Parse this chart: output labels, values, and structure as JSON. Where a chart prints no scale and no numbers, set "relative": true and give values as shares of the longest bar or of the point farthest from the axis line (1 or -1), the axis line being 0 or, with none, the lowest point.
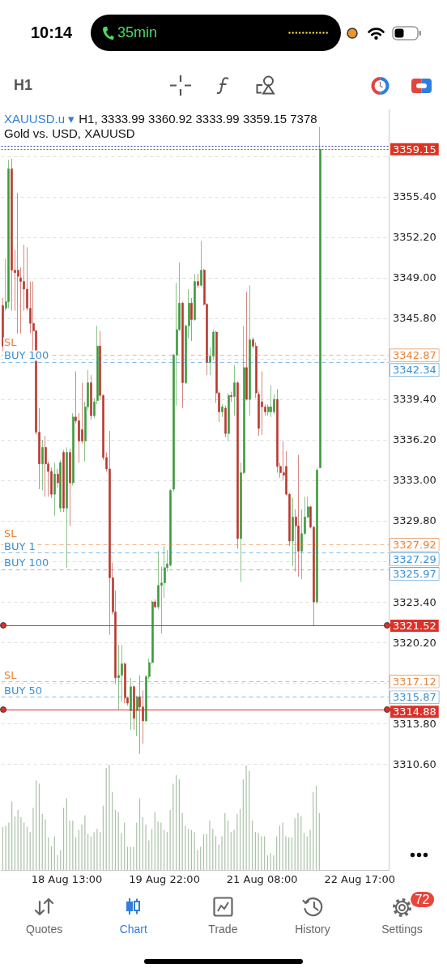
{
  "chart_data": [
    {
      "type": "candlestick",
      "title": "XAUUSD.u ▾",
      "subtitle": "Gold vs. USD, XAUUSD",
      "annotations": [
        "H1, 3333.99 3360.92 3333.99 3359.15 7378",
        "10:14",
        "35min",
        "H1",
        "Quotes",
        "Chart",
        "Trade",
        "History",
        "Settings",
        "72",
        {
          "text": "SL",
          "y": 3342.87
        },
        {
          "text": "BUY 100",
          "y": 3342.34
        },
        {
          "text": "SL",
          "y": 3327.92
        },
        {
          "text": "BUY 1",
          "y": 3327.29
        },
        {
          "text": "BUY 100",
          "y": 3325.97
        },
        {
          "text": "SL",
          "y": 3317.12
        },
        {
          "text": "BUY 50",
          "y": 3315.87
        }
      ],
      "categories": [
        null,
        null,
        null,
        null,
        null,
        null,
        null,
        null,
        null,
        null,
        null,
        null,
        null,
        null,
        null,
        null,
        null,
        null,
        null,
        null,
        null,
        "18 Aug 13:00",
        null,
        null,
        null,
        null,
        null,
        null,
        null,
        null,
        null,
        null,
        null,
        null,
        null,
        null,
        null,
        null,
        null,
        null,
        null,
        null,
        null,
        null,
        null,
        null,
        null,
        null,
        null,
        null,
        null,
        null,
        null,
        "19 Aug 22:00",
        null,
        null,
        null,
        null,
        null,
        null,
        null,
        null,
        null,
        null,
        null,
        null,
        null,
        null,
        null,
        null,
        null,
        null,
        null,
        null,
        null,
        null,
        null,
        null,
        null,
        null,
        null,
        null,
        null,
        null,
        null,
        "21 Aug 08:00",
        null,
        null,
        null,
        null,
        null,
        null,
        null,
        null,
        null,
        null,
        null,
        null,
        null,
        null,
        null,
        null,
        null,
        null,
        null,
        null,
        null,
        null,
        null,
        null,
        null,
        null,
        null,
        null,
        null,
        null,
        null,
        "22 Aug 17:00",
        null,
        null,
        null,
        null,
        null,
        null,
        null,
        null,
        null
      ],
      "ohlc": [
        [
          3346.8,
          3347.4,
          3343.2,
          3343.6
        ],
        [
          3346.6,
          3350.5,
          3346.4,
          3347.1
        ],
        [
          3347.1,
          3358.3,
          3346.6,
          3357.6
        ],
        [
          3357.6,
          3358.4,
          3346.4,
          3349.6
        ],
        [
          3349.6,
          3351.2,
          3346.4,
          3349.4
        ],
        [
          3349.6,
          3355.7,
          3344.6,
          3349.1
        ],
        [
          3349.0,
          3349.8,
          3344.6,
          3348.7
        ],
        [
          3348.7,
          3351.6,
          3346.4,
          3348.1
        ],
        [
          3348.1,
          3351.4,
          3346.4,
          3346.6
        ],
        [
          3346.6,
          3348.7,
          3344.6,
          3345.4
        ],
        [
          3345.4,
          3348.7,
          3343.2,
          3344.8
        ],
        [
          3344.8,
          3344.9,
          3336.6,
          3336.8
        ],
        [
          3336.8,
          3338.7,
          3332.3,
          3334.3
        ],
        [
          3334.3,
          3336.2,
          3332.2,
          3335.6
        ],
        [
          3335.6,
          3336.5,
          3331.7,
          3334.3
        ],
        [
          3334.3,
          3334.5,
          3331.7,
          3333.7
        ],
        [
          3333.7,
          3334.0,
          3331.6,
          3331.9
        ],
        [
          3331.9,
          3334.4,
          3330.2,
          3333.5
        ],
        [
          3333.5,
          3333.9,
          3332.4,
          3332.8
        ],
        [
          3330.8,
          3334.6,
          3330.5,
          3334.4
        ],
        [
          3335.2,
          3335.4,
          3330.5,
          3330.8
        ],
        [
          3330.8,
          3335.6,
          3326.1,
          3335.2
        ],
        [
          3335.2,
          3335.5,
          3329.4,
          3332.8
        ],
        [
          3332.8,
          3338.3,
          3332.6,
          3338.0
        ],
        [
          3338.0,
          3341.6,
          3337.5,
          3337.7
        ],
        [
          3337.7,
          3338.3,
          3334.4,
          3336.1
        ],
        [
          3337.0,
          3340.7,
          3335.9,
          3336.1
        ],
        [
          3336.1,
          3339.2,
          3334.5,
          3338.8
        ],
        [
          3338.8,
          3341.7,
          3338.5,
          3340.7
        ],
        [
          3340.7,
          3341.3,
          3337.8,
          3338.1
        ],
        [
          3338.1,
          3339.5,
          3337.9,
          3339.2
        ],
        [
          3339.3,
          3345.2,
          3339.0,
          3343.6
        ],
        [
          3343.6,
          3344.8,
          3339.4,
          3339.7
        ],
        [
          3339.7,
          3339.8,
          3334.6,
          3334.8
        ],
        [
          3334.8,
          3335.2,
          3333.7,
          3333.9
        ],
        [
          3333.9,
          3336.9,
          3320.8,
          3325.3
        ],
        [
          3325.3,
          3326.5,
          3322.4,
          3322.6
        ],
        [
          3322.6,
          3324.3,
          3316.9,
          3317.4
        ],
        [
          3317.4,
          3320.0,
          3314.9,
          3317.6
        ],
        [
          3317.6,
          3320.0,
          3315.5,
          3318.5
        ],
        [
          3318.5,
          3318.6,
          3315.4,
          3315.8
        ],
        [
          3315.8,
          3315.9,
          3315.2,
          3315.4
        ],
        [
          3314.8,
          3317.4,
          3313.3,
          3316.7
        ],
        [
          3316.7,
          3316.8,
          3313.3,
          3314.2
        ],
        [
          3314.8,
          3316.0,
          3312.8,
          3315.9
        ],
        [
          3315.9,
          3317.6,
          3311.4,
          3315.1
        ],
        [
          3315.1,
          3316.4,
          3312.2,
          3314.0
        ],
        [
          3314.0,
          3317.6,
          3313.9,
          3317.5
        ],
        [
          3317.5,
          3318.9,
          3317.3,
          3318.6
        ],
        [
          3318.6,
          3323.5,
          3318.5,
          3323.4
        ],
        [
          3323.4,
          3323.6,
          3322.9,
          3323.0
        ],
        [
          3323.0,
          3327.4,
          3322.8,
          3324.7
        ],
        [
          3324.7,
          3326.2,
          3320.9,
          3324.9
        ],
        [
          3324.9,
          3327.8,
          3323.7,
          3326.1
        ],
        [
          3326.1,
          3327.5,
          3325.8,
          3326.4
        ],
        [
          3326.3,
          3332.3,
          3326.2,
          3332.2
        ],
        [
          3332.3,
          3343.0,
          3332.1,
          3342.9
        ],
        [
          3342.9,
          3348.6,
          3338.9,
          3344.9
        ],
        [
          3344.9,
          3350.2,
          3344.8,
          3347.0
        ],
        [
          3347.0,
          3347.1,
          3338.7,
          3340.7
        ],
        [
          3340.7,
          3345.3,
          3340.6,
          3345.2
        ],
        [
          3345.2,
          3348.1,
          3344.2,
          3347.0
        ],
        [
          3347.0,
          3347.4,
          3344.0,
          3345.7
        ],
        [
          3345.7,
          3349.3,
          3345.6,
          3348.7
        ],
        [
          3348.7,
          3349.3,
          3348.2,
          3348.4
        ],
        [
          3348.4,
          3351.9,
          3348.3,
          3349.6
        ],
        [
          3349.6,
          3349.7,
          3346.8,
          3346.9
        ],
        [
          3346.9,
          3347.0,
          3341.3,
          3342.3
        ],
        [
          3342.3,
          3343.5,
          3341.3,
          3342.8
        ],
        [
          3342.8,
          3344.9,
          3342.5,
          3344.7
        ],
        [
          3344.7,
          3344.8,
          3339.1,
          3339.9
        ],
        [
          3339.9,
          3340.0,
          3337.6,
          3338.4
        ],
        [
          3338.4,
          3339.0,
          3338.0,
          3338.8
        ],
        [
          3338.7,
          3338.9,
          3336.4,
          3336.7
        ],
        [
          3336.7,
          3339.9,
          3336.1,
          3339.7
        ],
        [
          3339.7,
          3340.0,
          3339.2,
          3339.6
        ],
        [
          3339.6,
          3342.1,
          3338.1,
          3340.7
        ],
        [
          3340.7,
          3340.8,
          3327.6,
          3328.4
        ],
        [
          3328.4,
          3334.4,
          3325.0,
          3333.6
        ],
        [
          3333.6,
          3345.2,
          3333.5,
          3341.9
        ],
        [
          3341.9,
          3347.9,
          3339.3,
          3339.4
        ],
        [
          3339.4,
          3348.4,
          3338.1,
          3344.1
        ],
        [
          3344.1,
          3344.3,
          3343.4,
          3343.6
        ],
        [
          3343.6,
          3343.9,
          3339.5,
          3339.9
        ],
        [
          3339.8,
          3340.0,
          3336.5,
          3337.1
        ],
        [
          3339.2,
          3341.6,
          3336.6,
          3338.8
        ],
        [
          3338.8,
          3339.0,
          3338.1,
          3338.4
        ],
        [
          3338.4,
          3339.0,
          3338.1,
          3338.8
        ],
        [
          3338.4,
          3340.5,
          3338.0,
          3338.8
        ],
        [
          3338.4,
          3339.8,
          3338.2,
          3339.4
        ],
        [
          3339.4,
          3340.2,
          3333.6,
          3334.1
        ],
        [
          3334.1,
          3334.4,
          3333.2,
          3333.6
        ],
        [
          3333.6,
          3336.1,
          3333.0,
          3333.4
        ],
        [
          3334.1,
          3335.3,
          3331.8,
          3331.9
        ],
        [
          3331.9,
          3332.0,
          3327.8,
          3328.2
        ],
        [
          3328.2,
          3331.6,
          3326.2,
          3330.1
        ],
        [
          3330.1,
          3330.7,
          3325.8,
          3329.4
        ],
        [
          3329.4,
          3335.0,
          3325.4,
          3327.4
        ],
        [
          3327.4,
          3330.7,
          3325.2,
          3328.8
        ],
        [
          3328.8,
          3331.7,
          3328.7,
          3330.1
        ],
        [
          3330.1,
          3331.7,
          3330.0,
          3330.9
        ],
        [
          3330.9,
          3331.0,
          3329.2,
          3329.3
        ],
        [
          3329.3,
          3329.4,
          3321.5,
          3323.4
        ],
        [
          3323.4,
          3334.0,
          3323.2,
          3333.8
        ],
        [
          3333.99,
          3360.92,
          3333.99,
          3359.15
        ],
        null,
        null,
        null,
        null,
        null,
        null,
        null,
        null,
        null,
        null,
        null,
        null,
        null,
        null,
        null,
        null,
        null,
        null,
        null,
        null,
        null,
        null
      ],
      "colors": [
        "#b8382e",
        "#3c9a3c",
        "#3c9a3c",
        "#b8382e",
        "#b8382e",
        "#b8382e",
        "#b8382e",
        "#b8382e",
        "#b8382e",
        "#b8382e",
        "#b8382e",
        "#b8382e",
        "#b8382e",
        "#3c9a3c",
        "#b8382e",
        "#b8382e",
        "#b8382e",
        "#3c9a3c",
        "#b8382e",
        "#3c9a3c",
        "#b8382e",
        "#3c9a3c",
        "#b8382e",
        "#3c9a3c",
        "#b8382e",
        "#b8382e",
        "#b8382e",
        "#3c9a3c",
        "#3c9a3c",
        "#b8382e",
        "#3c9a3c",
        "#3c9a3c",
        "#b8382e",
        "#b8382e",
        "#b8382e",
        "#b8382e",
        "#b8382e",
        "#b8382e",
        "#3c9a3c",
        "#3c9a3c",
        "#b8382e",
        "#b8382e",
        "#3c9a3c",
        "#b8382e",
        "#3c9a3c",
        "#b8382e",
        "#b8382e",
        "#3c9a3c",
        "#3c9a3c",
        "#3c9a3c",
        "#b8382e",
        "#3c9a3c",
        "#3c9a3c",
        "#3c9a3c",
        "#3c9a3c",
        "#3c9a3c",
        "#3c9a3c",
        "#3c9a3c",
        "#3c9a3c",
        "#b8382e",
        "#3c9a3c",
        "#3c9a3c",
        "#b8382e",
        "#3c9a3c",
        "#b8382e",
        "#3c9a3c",
        "#b8382e",
        "#b8382e",
        "#3c9a3c",
        "#3c9a3c",
        "#b8382e",
        "#b8382e",
        "#3c9a3c",
        "#b8382e",
        "#3c9a3c",
        "#b8382e",
        "#3c9a3c",
        "#b8382e",
        "#3c9a3c",
        "#3c9a3c",
        "#b8382e",
        "#3c9a3c",
        "#b8382e",
        "#b8382e",
        "#b8382e",
        "#b8382e",
        "#b8382e",
        "#3c9a3c",
        "#3c9a3c",
        "#3c9a3c",
        "#b8382e",
        "#b8382e",
        "#b8382e",
        "#b8382e",
        "#b8382e",
        "#3c9a3c",
        "#b8382e",
        "#b8382e",
        "#3c9a3c",
        "#3c9a3c",
        "#3c9a3c",
        "#b8382e",
        "#b8382e",
        "#3c9a3c",
        "#3c9a3c",
        null,
        null,
        null,
        null,
        null,
        null,
        null,
        null,
        null,
        null,
        null,
        null,
        null,
        null,
        null,
        null,
        null,
        null,
        null,
        null,
        null,
        null
      ],
      "ylim": [
        3302.2,
        3362.3
      ],
      "yticks": [
        {
          "value": 3310.6,
          "label": "3310.60"
        },
        {
          "value": 3313.8,
          "label": "3313.80"
        },
        {
          "value": 3317.0,
          "label": null
        },
        {
          "value": 3320.2,
          "label": "3320.20"
        },
        {
          "value": 3323.4,
          "label": "3323.40"
        },
        {
          "value": 3326.6,
          "label": null
        },
        {
          "value": 3329.8,
          "label": "3329.80"
        },
        {
          "value": 3333.0,
          "label": "3333.00"
        },
        {
          "value": 3336.2,
          "label": "3336.20"
        },
        {
          "value": 3339.4,
          "label": "3339.40"
        },
        {
          "value": 3342.6,
          "label": null
        },
        {
          "value": 3345.8,
          "label": "3345.80"
        },
        {
          "value": 3349.0,
          "label": "3349.00"
        },
        {
          "value": 3352.2,
          "label": "3352.20"
        },
        {
          "value": 3355.4,
          "label": "3355.40"
        },
        {
          "value": 3358.6,
          "label": null
        }
      ],
      "grid": "y",
      "ref_lines": [
        {
          "axis": "y",
          "value": 3359.4,
          "color": "#2b3b9e",
          "line_style": "dotted"
        },
        {
          "axis": "y",
          "value": 3359.15,
          "label": "3359.15",
          "color": "#e0311f",
          "line_style": "dotted"
        },
        {
          "axis": "y",
          "value": 3342.87,
          "label": "3342.87",
          "color": "#e8833a",
          "line_style": "dashed"
        },
        {
          "axis": "y",
          "value": 3342.34,
          "label": "3342.34",
          "color": "#3d8fd1",
          "line_style": "dashed"
        },
        {
          "axis": "y",
          "value": 3327.92,
          "label": "3327.92",
          "color": "#e8833a",
          "line_style": "dashed"
        },
        {
          "axis": "y",
          "value": 3327.29,
          "label": "3327.29",
          "color": "#3d8fd1",
          "line_style": "dashed"
        },
        {
          "axis": "y",
          "value": 3325.97,
          "label": "3325.97",
          "color": "#3d8fd1",
          "line_style": "dashed"
        },
        {
          "axis": "y",
          "value": 3321.52,
          "label": "3321.52",
          "color": "#dc3128",
          "line_style": "solid"
        },
        {
          "axis": "y",
          "value": 3317.12,
          "label": "3317.12",
          "color": "#e8833a",
          "line_style": "dashed"
        },
        {
          "axis": "y",
          "value": 3315.87,
          "label": "3315.87",
          "color": "#3d8fd1",
          "line_style": "dashed"
        },
        {
          "axis": "y",
          "value": 3314.88,
          "label": "3314.88",
          "color": "#dc3128",
          "line_style": "solid"
        }
      ]
    },
    {
      "type": "bar",
      "relative": true,
      "color": "#a9c1a6",
      "categories": [
        null,
        null,
        null,
        null,
        null,
        null,
        null,
        null,
        null,
        null,
        null,
        null,
        null,
        null,
        null,
        null,
        null,
        null,
        null,
        null,
        null,
        null,
        null,
        null,
        null,
        null,
        null,
        null,
        null,
        null,
        null,
        null,
        null,
        null,
        null,
        null,
        null,
        null,
        null,
        null,
        null,
        null,
        null,
        null,
        null,
        null,
        null,
        null,
        null,
        null,
        null,
        null,
        null,
        null,
        null,
        null,
        null,
        null,
        null,
        null,
        null,
        null,
        null,
        null,
        null,
        null,
        null,
        null,
        null,
        null,
        null,
        null,
        null,
        null,
        null,
        null,
        null,
        null,
        null,
        null,
        null,
        null,
        null,
        null,
        null,
        null,
        null,
        null,
        null,
        null,
        null,
        null,
        null,
        null,
        null,
        null,
        null,
        null,
        null,
        null,
        null,
        null,
        null,
        null,
        null,
        null,
        null,
        null,
        null,
        null,
        null,
        null,
        null,
        null,
        null,
        null,
        null,
        null,
        null,
        null,
        null,
        null,
        null,
        null,
        null,
        null,
        null
      ],
      "values": [
        0.41,
        0.42,
        0.45,
        0.65,
        0.51,
        0.57,
        0.5,
        0.45,
        0.41,
        0.36,
        0.59,
        0.85,
        0.82,
        0.53,
        0.48,
        0.31,
        0.23,
        0.32,
        0.14,
        0.19,
        0.59,
        0.68,
        0.47,
        0.47,
        0.31,
        0.38,
        0.43,
        0.52,
        0.34,
        0.32,
        0.36,
        0.39,
        0.36,
        0.61,
        0.97,
        1.0,
        0.74,
        0.57,
        0.55,
        0.35,
        0.45,
        0.22,
        0.22,
        0.22,
        0.45,
        0.68,
        0.5,
        0.43,
        0.28,
        0.39,
        0.55,
        0.46,
        0.45,
        0.38,
        0.36,
        0.57,
        0.82,
        0.9,
        0.86,
        0.54,
        0.42,
        0.39,
        0.38,
        0.36,
        0.19,
        0.22,
        0.34,
        0.34,
        0.47,
        0.39,
        0.32,
        0.24,
        0.32,
        0.54,
        0.47,
        0.36,
        0.38,
        0.53,
        0.58,
        0.86,
        0.99,
        0.94,
        0.47,
        0.36,
        0.35,
        0.32,
        0.32,
        0.14,
        0.16,
        0.14,
        0.32,
        0.42,
        0.45,
        0.32,
        0.31,
        0.31,
        0.49,
        0.54,
        0.51,
        0.35,
        0.32,
        0.38,
        0.74,
        0.8,
        0.54,
        null,
        null,
        null,
        null,
        null,
        null,
        null,
        null,
        null,
        null,
        null,
        null,
        null,
        null,
        null,
        null,
        null,
        null,
        null,
        null,
        null,
        null
      ]
    }
  ]
}
